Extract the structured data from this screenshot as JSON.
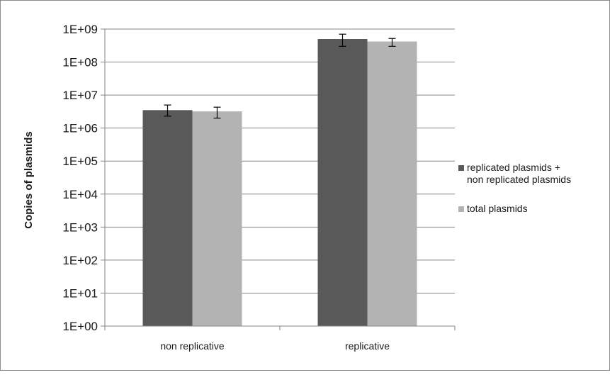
{
  "chart_data": {
    "type": "bar",
    "title": "",
    "xlabel": "",
    "ylabel": "Copies of plasmids",
    "yscale": "log",
    "ylim": [
      1,
      1000000000
    ],
    "y_tick_labels": [
      "1E+00",
      "1E+01",
      "1E+02",
      "1E+03",
      "1E+04",
      "1E+05",
      "1E+06",
      "1E+07",
      "1E+08",
      "1E+09"
    ],
    "categories": [
      "non replicative",
      "replicative"
    ],
    "series": [
      {
        "name": "replicated plasmids + non replicated plasmids",
        "legend_lines": [
          "replicated plasmids +",
          "non replicated plasmids"
        ],
        "color": "#595959",
        "values": [
          3500000,
          500000000
        ],
        "error_low": [
          2300000,
          300000000
        ],
        "error_high": [
          5000000,
          700000000
        ]
      },
      {
        "name": "total plasmids",
        "legend_lines": [
          "total plasmids"
        ],
        "color": "#b3b3b3",
        "values": [
          3200000,
          420000000
        ],
        "error_low": [
          2000000,
          300000000
        ],
        "error_high": [
          4300000,
          520000000
        ]
      }
    ],
    "grid": true,
    "gridline_color": "#868686",
    "legend_position": "right"
  }
}
